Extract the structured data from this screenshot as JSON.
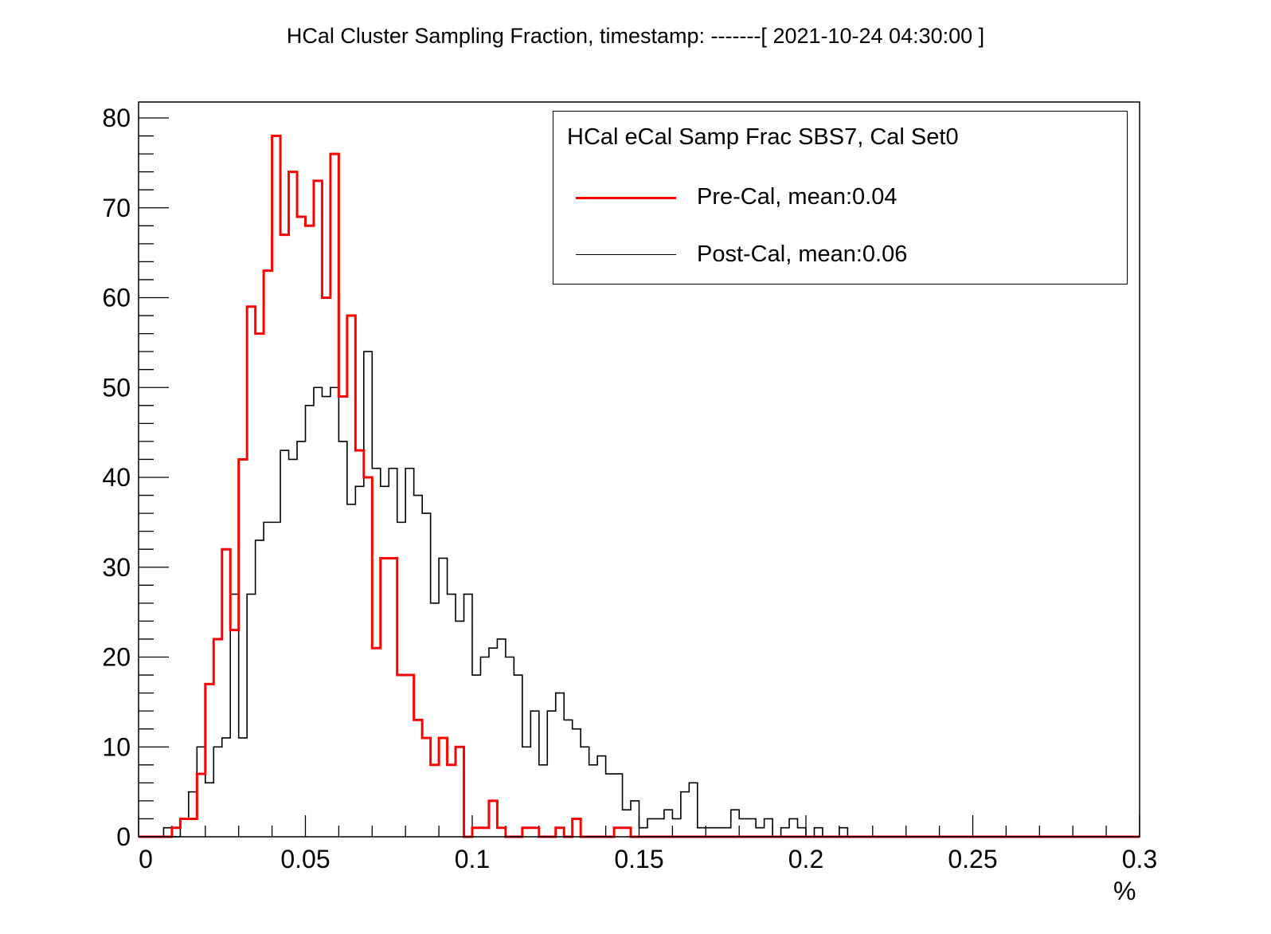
{
  "title": "HCal Cluster Sampling Fraction, timestamp: -------[ 2021-10-24 04:30:00 ]",
  "legend": {
    "header": "HCal eCal Samp Frac SBS7, Cal Set0",
    "entries": [
      {
        "label": "Pre-Cal, mean:0.04",
        "color": "#ff0000"
      },
      {
        "label": "Post-Cal, mean:0.06",
        "color": "#000000"
      }
    ]
  },
  "chart_data": {
    "type": "histogram",
    "xlabel": "%",
    "xlim": [
      0,
      0.3
    ],
    "ylim": [
      0,
      80
    ],
    "bin_width": 0.0025,
    "xticks": [
      0,
      0.05,
      0.1,
      0.15,
      0.2,
      0.25,
      0.3
    ],
    "xtick_labels": [
      "0",
      "0.05",
      "0.1",
      "0.15",
      "0.2",
      "0.25",
      "0.3"
    ],
    "yticks": [
      0,
      10,
      20,
      30,
      40,
      50,
      60,
      70,
      80
    ],
    "ytick_labels": [
      "0",
      "10",
      "20",
      "30",
      "40",
      "50",
      "60",
      "70",
      "80"
    ],
    "series": [
      {
        "name": "Pre-Cal, mean:0.04",
        "color": "#ff0000",
        "values": [
          0,
          0,
          0,
          0,
          1,
          2,
          2,
          7,
          17,
          22,
          32,
          23,
          42,
          59,
          56,
          63,
          78,
          67,
          74,
          69,
          68,
          73,
          60,
          76,
          49,
          58,
          43,
          40,
          21,
          31,
          31,
          18,
          18,
          13,
          11,
          8,
          11,
          8,
          10,
          0,
          1,
          1,
          4,
          1,
          0,
          0,
          1,
          1,
          0,
          0,
          1,
          0,
          2,
          0,
          0,
          0,
          0,
          1,
          1,
          0,
          0,
          0,
          0,
          0,
          0,
          0,
          0,
          0,
          0,
          0,
          0,
          0,
          0,
          0,
          0,
          0,
          0,
          0,
          0,
          0,
          0,
          0,
          0,
          0,
          0,
          0,
          0,
          0,
          0,
          0,
          0,
          0,
          0,
          0,
          0,
          0,
          0,
          0,
          0,
          0,
          0,
          0,
          0,
          0,
          0,
          0,
          0,
          0,
          0,
          0,
          0,
          0,
          0,
          0,
          0,
          0,
          0,
          0,
          0,
          0
        ]
      },
      {
        "name": "Post-Cal, mean:0.06",
        "color": "#000000",
        "values": [
          0,
          0,
          0,
          1,
          0,
          2,
          5,
          10,
          6,
          10,
          11,
          27,
          11,
          27,
          33,
          35,
          35,
          43,
          42,
          44,
          48,
          50,
          49,
          50,
          44,
          37,
          39,
          54,
          41,
          39,
          41,
          35,
          41,
          38,
          36,
          26,
          31,
          27,
          24,
          27,
          18,
          20,
          21,
          22,
          20,
          18,
          10,
          14,
          8,
          14,
          16,
          13,
          12,
          10,
          8,
          9,
          7,
          7,
          3,
          4,
          1,
          2,
          2,
          3,
          2,
          5,
          6,
          1,
          1,
          1,
          1,
          3,
          2,
          2,
          1,
          2,
          0,
          1,
          2,
          1,
          0,
          1,
          0,
          0,
          1,
          0,
          0,
          0,
          0,
          0,
          0,
          0,
          0,
          0,
          0,
          0,
          0,
          0,
          0,
          0,
          0,
          0,
          0,
          0,
          0,
          0,
          0,
          0,
          0,
          0,
          0,
          0,
          0,
          0,
          0,
          0,
          0,
          0,
          0,
          0
        ]
      }
    ]
  }
}
